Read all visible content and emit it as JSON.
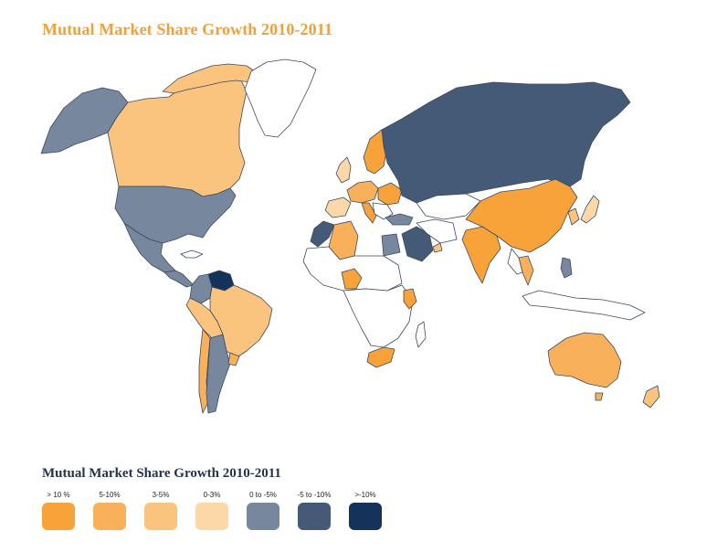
{
  "title": "Mutual Market Share Growth 2010-2011",
  "legend": {
    "title": "Mutual Market Share Growth 2010-2011",
    "items": [
      {
        "label": "> 10 %",
        "color": "#f7a33a"
      },
      {
        "label": "5-10%",
        "color": "#f8b05a"
      },
      {
        "label": "3-5%",
        "color": "#fac47f"
      },
      {
        "label": "0-3%",
        "color": "#fcd7a8"
      },
      {
        "label": "0 to -5%",
        "color": "#76879e"
      },
      {
        "label": "-5 to -10%",
        "color": "#445a77"
      },
      {
        "label": ">-10%",
        "color": "#15325a"
      }
    ]
  },
  "regions": [
    {
      "name": "alaska",
      "category": "0 to -5%"
    },
    {
      "name": "canada",
      "category": "3-5%"
    },
    {
      "name": "greenland",
      "category": "none"
    },
    {
      "name": "usa",
      "category": "0 to -5%"
    },
    {
      "name": "mexico",
      "category": "0 to -5%"
    },
    {
      "name": "central-america",
      "category": "0 to -5%"
    },
    {
      "name": "venezuela",
      "category": ">-10%"
    },
    {
      "name": "colombia",
      "category": "0 to -5%"
    },
    {
      "name": "brazil",
      "category": "3-5%"
    },
    {
      "name": "peru-bolivia",
      "category": "3-5%"
    },
    {
      "name": "chile",
      "category": "5-10%"
    },
    {
      "name": "argentina",
      "category": "0 to -5%"
    },
    {
      "name": "uruguay",
      "category": "5-10%"
    },
    {
      "name": "uk",
      "category": "0-3%"
    },
    {
      "name": "scandinavia",
      "category": "> 10 %"
    },
    {
      "name": "western-europe",
      "category": "5-10%"
    },
    {
      "name": "iberia",
      "category": "0-3%"
    },
    {
      "name": "italy",
      "category": "> 10 %"
    },
    {
      "name": "eastern-europe",
      "category": "> 10 %"
    },
    {
      "name": "russia",
      "category": "-5 to -10%"
    },
    {
      "name": "turkey",
      "category": "0 to -5%"
    },
    {
      "name": "morocco",
      "category": "-5 to -10%"
    },
    {
      "name": "algeria",
      "category": "5-10%"
    },
    {
      "name": "egypt",
      "category": "0 to -5%"
    },
    {
      "name": "saudi-arabia",
      "category": "-5 to -10%"
    },
    {
      "name": "uae",
      "category": "3-5%"
    },
    {
      "name": "nigeria",
      "category": "> 10 %"
    },
    {
      "name": "kenya",
      "category": "> 10 %"
    },
    {
      "name": "south-africa",
      "category": "> 10 %"
    },
    {
      "name": "india",
      "category": "> 10 %"
    },
    {
      "name": "china",
      "category": "> 10 %"
    },
    {
      "name": "korea",
      "category": "3-5%"
    },
    {
      "name": "japan",
      "category": "0-3%"
    },
    {
      "name": "thailand",
      "category": "5-10%"
    },
    {
      "name": "philippines",
      "category": "0 to -5%"
    },
    {
      "name": "indonesia",
      "category": "none"
    },
    {
      "name": "australia",
      "category": "5-10%"
    },
    {
      "name": "new-zealand",
      "category": "3-5%"
    }
  ]
}
